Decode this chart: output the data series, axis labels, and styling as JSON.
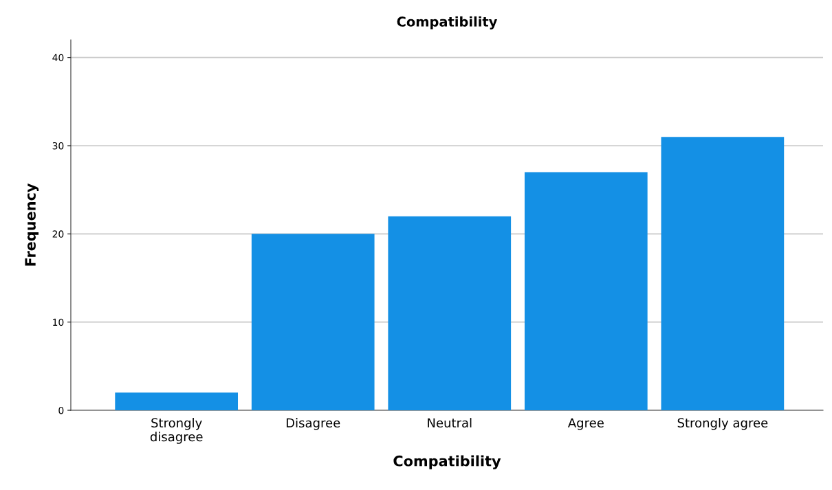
{
  "chart_data": {
    "type": "bar",
    "title": "Compatibility",
    "xlabel": "Compatibility",
    "ylabel": "Frequency",
    "categories": [
      "Strongly\ndisagree",
      "Disagree",
      "Neutral",
      "Agree",
      "Strongly agree"
    ],
    "values": [
      2,
      20,
      22,
      27,
      31
    ],
    "color": "#1490e5",
    "ylim": [
      0,
      42
    ],
    "yticks": [
      0,
      10,
      20,
      30,
      40
    ],
    "grid": "y",
    "legend": false
  }
}
